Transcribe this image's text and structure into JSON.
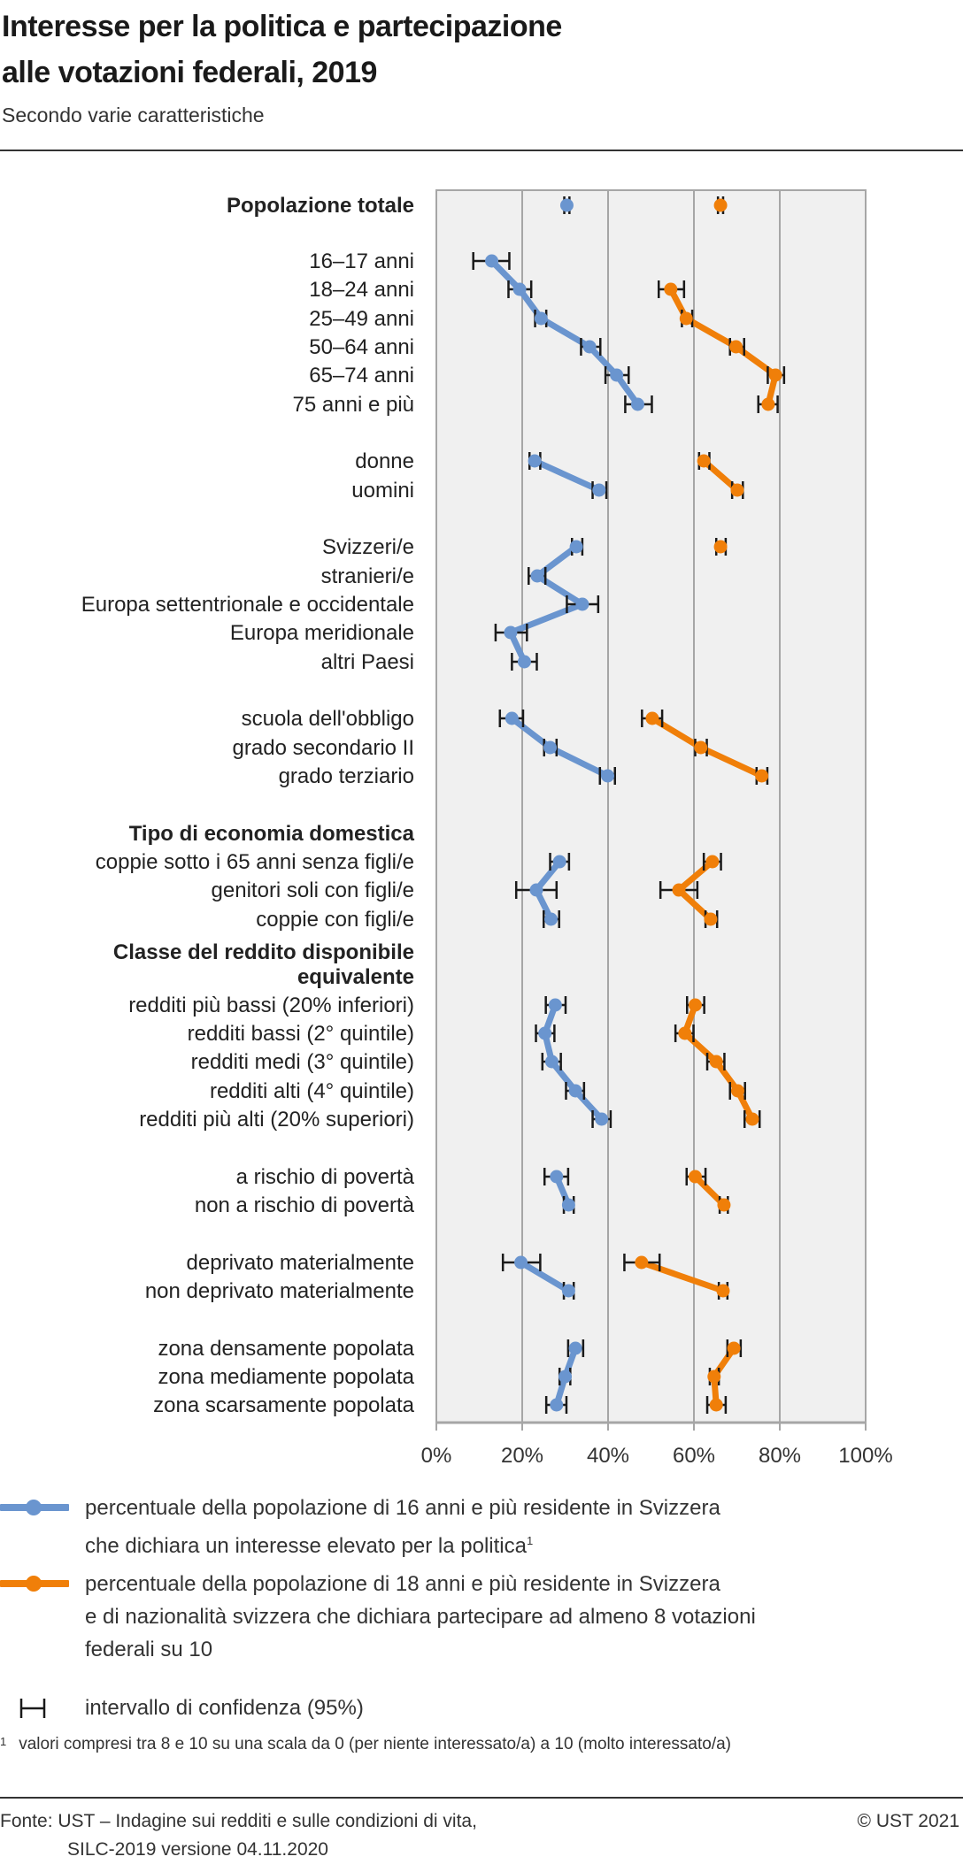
{
  "header": {
    "title_line1": "Interesse per la politica e partecipazione",
    "title_line2": "alle votazioni federali, 2019",
    "subtitle": "Secondo varie caratteristiche"
  },
  "colors": {
    "interest": "#6a95cf",
    "participation": "#f07f09",
    "plot_background": "#f0f0f0",
    "grid": "#a6a6a6",
    "error_bar": "#1a1a1a"
  },
  "chart_data": {
    "type": "line",
    "orientation": "horizontal",
    "title": "Interesse per la politica e partecipazione alle votazioni federali, 2019",
    "subtitle": "Secondo varie caratteristiche",
    "xlabel": "",
    "ylabel": "",
    "xlim": [
      0,
      100
    ],
    "x_unit": "%",
    "x_ticks": [
      "0%",
      "20%",
      "40%",
      "60%",
      "80%",
      "100%"
    ],
    "grid": true,
    "legend_position": "bottom",
    "rows": [
      {
        "label": "Popolazione totale",
        "bold": true,
        "group": 0,
        "interest": 30.4,
        "interest_ci": [
          29.8,
          31.0
        ],
        "participation": 66.2,
        "participation_ci": [
          65.6,
          66.8
        ]
      },
      {
        "label": "16–17 anni",
        "group": 1,
        "interest": 12.9,
        "interest_ci": [
          8.6,
          17.0
        ],
        "participation": null,
        "participation_ci": null
      },
      {
        "label": "18–24 anni",
        "group": 1,
        "interest": 19.4,
        "interest_ci": [
          16.8,
          22.1
        ],
        "participation": 54.6,
        "participation_ci": [
          51.8,
          57.7
        ]
      },
      {
        "label": "25–49 anni",
        "group": 1,
        "interest": 24.4,
        "interest_ci": [
          23.0,
          25.6
        ],
        "participation": 58.2,
        "participation_ci": [
          57.2,
          59.6
        ]
      },
      {
        "label": "50–64 anni",
        "group": 1,
        "interest": 35.7,
        "interest_ci": [
          33.7,
          38.2
        ],
        "participation": 69.8,
        "participation_ci": [
          68.4,
          71.7
        ]
      },
      {
        "label": "65–74 anni",
        "group": 1,
        "interest": 42.0,
        "interest_ci": [
          39.4,
          44.8
        ],
        "participation": 79.0,
        "participation_ci": [
          77.2,
          81.0
        ]
      },
      {
        "label": "75 anni e più",
        "group": 1,
        "interest": 46.9,
        "interest_ci": [
          44.0,
          50.2
        ],
        "participation": 77.3,
        "participation_ci": [
          75.0,
          79.5
        ]
      },
      {
        "label": "donne",
        "group": 2,
        "interest": 22.9,
        "interest_ci": [
          21.7,
          24.2
        ],
        "participation": 62.3,
        "participation_ci": [
          61.2,
          63.6
        ]
      },
      {
        "label": "uomini",
        "group": 2,
        "interest": 37.9,
        "interest_ci": [
          36.4,
          39.6
        ],
        "participation": 70.1,
        "participation_ci": [
          68.9,
          71.4
        ]
      },
      {
        "label": "Svizzeri/e",
        "group": 3,
        "interest": 32.6,
        "interest_ci": [
          31.6,
          34.0
        ],
        "participation": 66.2,
        "participation_ci": [
          65.2,
          67.4
        ]
      },
      {
        "label": "stranieri/e",
        "group": 3,
        "interest": 23.5,
        "interest_ci": [
          21.5,
          25.4
        ],
        "participation": null,
        "participation_ci": null
      },
      {
        "label": "Europa settentrionale e occidentale",
        "group": 3,
        "interest": 34.0,
        "interest_ci": [
          30.4,
          37.7
        ],
        "participation": null,
        "participation_ci": null
      },
      {
        "label": "Europa meridionale",
        "group": 3,
        "interest": 17.3,
        "interest_ci": [
          13.8,
          21.1
        ],
        "participation": null,
        "participation_ci": null
      },
      {
        "label": "altri Paesi",
        "group": 3,
        "interest": 20.5,
        "interest_ci": [
          17.6,
          23.4
        ],
        "participation": null,
        "participation_ci": null
      },
      {
        "label": "scuola dell'obbligo",
        "group": 4,
        "interest": 17.6,
        "interest_ci": [
          14.8,
          20.2
        ],
        "participation": 50.3,
        "participation_ci": [
          47.9,
          52.6
        ]
      },
      {
        "label": "grado secondario II",
        "group": 4,
        "interest": 26.5,
        "interest_ci": [
          25.1,
          28.0
        ],
        "participation": 61.6,
        "participation_ci": [
          60.3,
          63.0
        ]
      },
      {
        "label": "grado terziario",
        "group": 4,
        "interest": 39.9,
        "interest_ci": [
          38.1,
          41.6
        ],
        "participation": 75.8,
        "participation_ci": [
          74.6,
          77.1
        ]
      },
      {
        "label": "Tipo di economia domestica",
        "bold": true,
        "header": true,
        "group": 5
      },
      {
        "label": "coppie sotto i 65 anni senza figli/e",
        "group": 5,
        "interest": 28.7,
        "interest_ci": [
          26.5,
          30.9
        ],
        "participation": 64.3,
        "participation_ci": [
          62.3,
          66.3
        ]
      },
      {
        "label": "genitori soli con figli/e",
        "group": 5,
        "interest": 23.3,
        "interest_ci": [
          18.6,
          28.0
        ],
        "participation": 56.5,
        "participation_ci": [
          52.2,
          60.8
        ]
      },
      {
        "label": "coppie con figli/e",
        "group": 5,
        "interest": 26.7,
        "interest_ci": [
          25.0,
          28.6
        ],
        "participation": 63.9,
        "participation_ci": [
          62.7,
          65.4
        ]
      },
      {
        "label": "Classe del reddito disponibile",
        "bold": true,
        "header": true,
        "group": 6
      },
      {
        "label": "equivalente",
        "bold": true,
        "header": true,
        "group": 6
      },
      {
        "label": "redditi più bassi (20% inferiori)",
        "group": 6,
        "interest": 27.7,
        "interest_ci": [
          25.5,
          30.1
        ],
        "participation": 60.3,
        "participation_ci": [
          58.4,
          62.4
        ]
      },
      {
        "label": "redditi bassi (2° quintile)",
        "group": 6,
        "interest": 25.3,
        "interest_ci": [
          23.2,
          27.5
        ],
        "participation": 57.9,
        "participation_ci": [
          55.7,
          59.9
        ]
      },
      {
        "label": "redditi medi (3° quintile)",
        "group": 6,
        "interest": 26.9,
        "interest_ci": [
          24.7,
          29.0
        ],
        "participation": 65.2,
        "participation_ci": [
          63.1,
          67.1
        ]
      },
      {
        "label": "redditi alti (4° quintile)",
        "group": 6,
        "interest": 32.4,
        "interest_ci": [
          30.2,
          34.4
        ],
        "participation": 70.2,
        "participation_ci": [
          68.4,
          71.9
        ]
      },
      {
        "label": "redditi più alti (20% superiori)",
        "group": 6,
        "interest": 38.5,
        "interest_ci": [
          36.4,
          40.6
        ],
        "participation": 73.6,
        "participation_ci": [
          71.8,
          75.3
        ]
      },
      {
        "label": "a rischio di povertà",
        "group": 7,
        "interest": 28.0,
        "interest_ci": [
          25.2,
          30.7
        ],
        "participation": 60.3,
        "participation_ci": [
          58.3,
          62.7
        ]
      },
      {
        "label": "non a rischio di povertà",
        "group": 7,
        "interest": 30.8,
        "interest_ci": [
          29.7,
          32.0
        ],
        "participation": 67.0,
        "participation_ci": [
          66.0,
          67.9
        ]
      },
      {
        "label": "deprivato materialmente",
        "group": 8,
        "interest": 19.7,
        "interest_ci": [
          15.5,
          24.2
        ],
        "participation": 47.8,
        "participation_ci": [
          43.8,
          52.0
        ]
      },
      {
        "label": "non deprivato materialmente",
        "group": 8,
        "interest": 30.8,
        "interest_ci": [
          29.7,
          32.0
        ],
        "participation": 66.8,
        "participation_ci": [
          65.8,
          67.8
        ]
      },
      {
        "label": "zona densamente popolata",
        "group": 9,
        "interest": 32.4,
        "interest_ci": [
          30.7,
          34.2
        ],
        "participation": 69.3,
        "participation_ci": [
          67.8,
          70.9
        ]
      },
      {
        "label": "zona mediamente popolata",
        "group": 9,
        "interest": 30.0,
        "interest_ci": [
          28.7,
          31.2
        ],
        "participation": 64.7,
        "participation_ci": [
          63.7,
          65.8
        ]
      },
      {
        "label": "zona scarsamente popolata",
        "group": 9,
        "interest": 28.0,
        "interest_ci": [
          25.6,
          30.3
        ],
        "participation": 65.2,
        "participation_ci": [
          63.1,
          67.4
        ]
      }
    ],
    "series": [
      {
        "key": "interest",
        "name": "percentuale della popolazione di 16 anni e più residente in Svizzera che dichiara un interesse elevato per la politica¹",
        "color": "#6a95cf"
      },
      {
        "key": "participation",
        "name": "percentuale della popolazione di 18 anni e più residente in Svizzera e di nazionalità svizzera che dichiara partecipare ad almeno 8 votazioni federali su 10",
        "color": "#f07f09"
      }
    ]
  },
  "legend": {
    "interest_line1": "percentuale della popolazione di 16 anni e più residente in Svizzera",
    "interest_line2": "che dichiara un interesse elevato per la politica",
    "interest_footnote_mark": "1",
    "participation_line1": "percentuale della popolazione di 18 anni e più residente in Svizzera",
    "participation_line2": "e di nazionalità svizzera che dichiara partecipare ad almeno 8 votazioni",
    "participation_line3": "federali su 10",
    "ci_label": "intervallo di confidenza (95%)"
  },
  "footnote": {
    "mark": "1",
    "text": "valori compresi tra 8 e 10 su una scala da 0 (per niente interessato/a) a 10 (molto interessato/a)"
  },
  "footer": {
    "source_line1": "Fonte: UST – Indagine sui redditi e sulle condizioni di vita,",
    "source_line2": "SILC-2019 versione 04.11.2020",
    "copyright": "© UST 2021"
  }
}
